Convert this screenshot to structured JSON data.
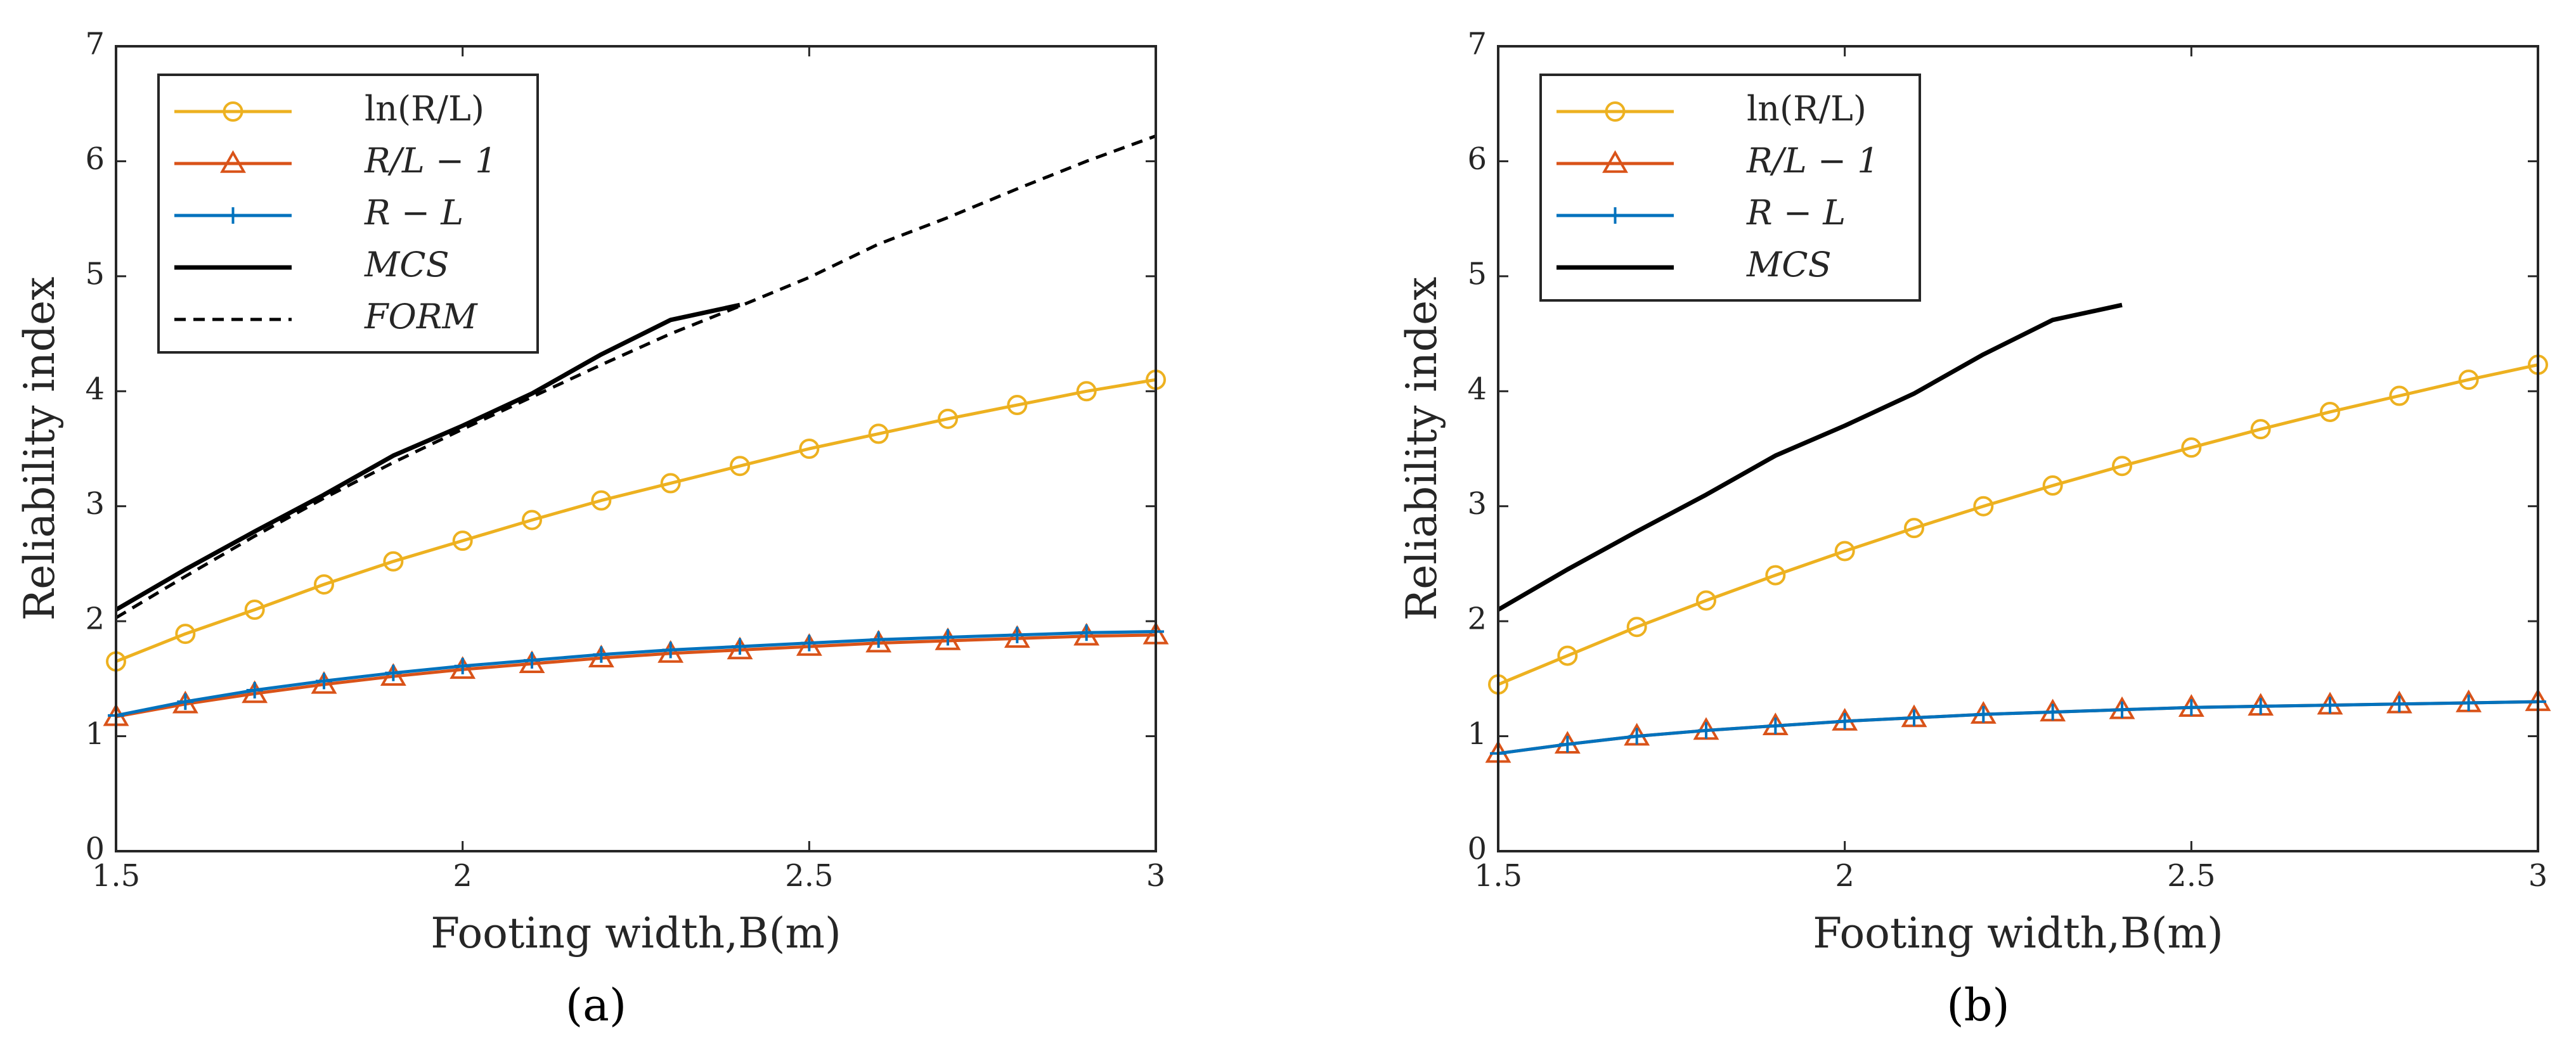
{
  "figure": {
    "captions": [
      "(a)",
      "(b)"
    ]
  },
  "styles": {
    "ln": {
      "color": "#EDB120",
      "marker": "circle"
    },
    "rl1": {
      "color": "#D95319",
      "marker": "triangle"
    },
    "rml": {
      "color": "#0072BD",
      "marker": "plus"
    },
    "mcs": {
      "color": "#000000",
      "dash": "solid"
    },
    "form": {
      "color": "#000000",
      "dash": "dashed"
    }
  },
  "chart_data": [
    {
      "type": "line",
      "panel": "a",
      "caption": "(a)",
      "xlabel": "Footing width,B(m)",
      "ylabel": "Reliability index",
      "xlim": [
        1.5,
        3
      ],
      "ylim": [
        0,
        7
      ],
      "xticks": [
        "1.5",
        "2",
        "2.5",
        "3"
      ],
      "yticks": [
        "0",
        "1",
        "2",
        "3",
        "4",
        "5",
        "6",
        "7"
      ],
      "legend_position": "top-left",
      "series": [
        {
          "key": "ln",
          "name": "ln(R/L)",
          "x": [
            1.5,
            1.6,
            1.7,
            1.8,
            1.9,
            2.0,
            2.1,
            2.2,
            2.3,
            2.4,
            2.5,
            2.6,
            2.7,
            2.8,
            2.9,
            3.0
          ],
          "y": [
            1.65,
            1.89,
            2.1,
            2.32,
            2.52,
            2.7,
            2.88,
            3.05,
            3.2,
            3.35,
            3.5,
            3.63,
            3.76,
            3.88,
            4.0,
            4.1
          ]
        },
        {
          "key": "rl1",
          "name": "R/L − 1",
          "x": [
            1.5,
            1.6,
            1.7,
            1.8,
            1.9,
            2.0,
            2.1,
            2.2,
            2.3,
            2.4,
            2.5,
            2.6,
            2.7,
            2.8,
            2.9,
            3.0
          ],
          "y": [
            1.17,
            1.28,
            1.37,
            1.45,
            1.52,
            1.58,
            1.63,
            1.68,
            1.72,
            1.75,
            1.78,
            1.81,
            1.83,
            1.85,
            1.87,
            1.88
          ]
        },
        {
          "key": "rml",
          "name": "R − L",
          "x": [
            1.5,
            1.6,
            1.7,
            1.8,
            1.9,
            2.0,
            2.1,
            2.2,
            2.3,
            2.4,
            2.5,
            2.6,
            2.7,
            2.8,
            2.9,
            3.0
          ],
          "y": [
            1.18,
            1.3,
            1.4,
            1.48,
            1.55,
            1.61,
            1.66,
            1.71,
            1.75,
            1.78,
            1.81,
            1.84,
            1.86,
            1.88,
            1.9,
            1.91
          ]
        },
        {
          "key": "mcs",
          "name": "MCS",
          "x": [
            1.5,
            1.6,
            1.7,
            1.8,
            1.9,
            2.0,
            2.1,
            2.2,
            2.3,
            2.4
          ],
          "y": [
            2.1,
            2.45,
            2.78,
            3.1,
            3.44,
            3.7,
            3.98,
            4.32,
            4.62,
            4.75
          ]
        },
        {
          "key": "form",
          "name": "FORM",
          "x": [
            1.5,
            1.6,
            1.7,
            1.8,
            1.9,
            2.0,
            2.1,
            2.2,
            2.3,
            2.4,
            2.5,
            2.6,
            2.7,
            2.8,
            2.9,
            3.0
          ],
          "y": [
            2.03,
            2.39,
            2.74,
            3.07,
            3.38,
            3.67,
            3.95,
            4.23,
            4.5,
            4.74,
            4.99,
            5.28,
            5.51,
            5.76,
            6.0,
            6.22
          ]
        }
      ]
    },
    {
      "type": "line",
      "panel": "b",
      "caption": "(b)",
      "xlabel": "Footing width,B(m)",
      "ylabel": "Reliability index",
      "xlim": [
        1.5,
        3
      ],
      "ylim": [
        0,
        7
      ],
      "xticks": [
        "1.5",
        "2",
        "2.5",
        "3"
      ],
      "yticks": [
        "0",
        "1",
        "2",
        "3",
        "4",
        "5",
        "6",
        "7"
      ],
      "legend_position": "top-left",
      "series": [
        {
          "key": "ln",
          "name": "ln(R/L)",
          "x": [
            1.5,
            1.6,
            1.7,
            1.8,
            1.9,
            2.0,
            2.1,
            2.2,
            2.3,
            2.4,
            2.5,
            2.6,
            2.7,
            2.8,
            2.9,
            3.0
          ],
          "y": [
            1.45,
            1.7,
            1.95,
            2.18,
            2.4,
            2.61,
            2.81,
            3.0,
            3.18,
            3.35,
            3.51,
            3.67,
            3.82,
            3.96,
            4.1,
            4.23
          ]
        },
        {
          "key": "rl1",
          "name": "R/L − 1",
          "x": [
            1.5,
            1.6,
            1.7,
            1.8,
            1.9,
            2.0,
            2.1,
            2.2,
            2.3,
            2.4,
            2.5,
            2.6,
            2.7,
            2.8,
            2.9,
            3.0
          ],
          "y": [
            0.85,
            0.93,
            1.0,
            1.05,
            1.09,
            1.13,
            1.16,
            1.19,
            1.21,
            1.23,
            1.25,
            1.26,
            1.27,
            1.28,
            1.29,
            1.3
          ]
        },
        {
          "key": "rml",
          "name": "R − L",
          "x": [
            1.5,
            1.6,
            1.7,
            1.8,
            1.9,
            2.0,
            2.1,
            2.2,
            2.3,
            2.4,
            2.5,
            2.6,
            2.7,
            2.8,
            2.9,
            3.0
          ],
          "y": [
            0.85,
            0.93,
            1.0,
            1.05,
            1.09,
            1.13,
            1.16,
            1.19,
            1.21,
            1.23,
            1.25,
            1.26,
            1.27,
            1.28,
            1.29,
            1.3
          ]
        },
        {
          "key": "mcs",
          "name": "MCS",
          "x": [
            1.5,
            1.6,
            1.7,
            1.8,
            1.9,
            2.0,
            2.1,
            2.2,
            2.3,
            2.4
          ],
          "y": [
            2.1,
            2.45,
            2.78,
            3.1,
            3.44,
            3.7,
            3.98,
            4.32,
            4.62,
            4.75
          ]
        }
      ]
    }
  ]
}
